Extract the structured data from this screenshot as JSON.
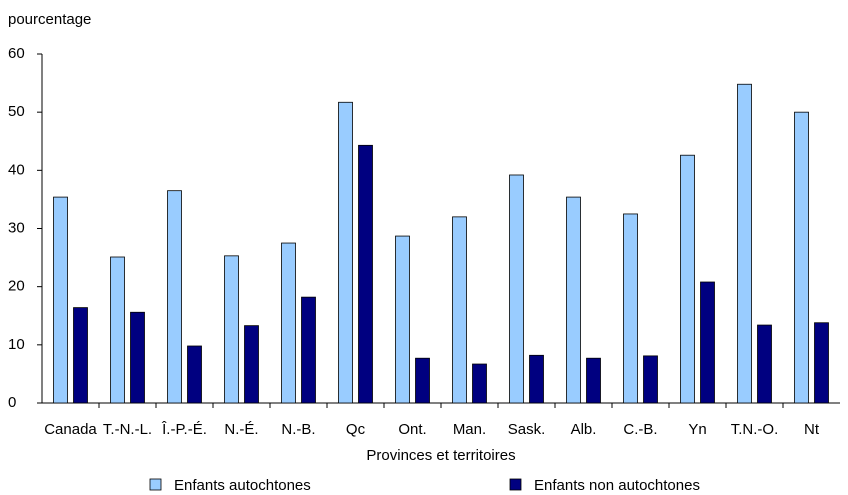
{
  "chart_data": {
    "type": "bar",
    "y_label": "pourcentage",
    "x_label": "Provinces et territoires",
    "categories": [
      "Canada",
      "T.-N.-L.",
      "Î.-P.-É.",
      "N.-É.",
      "N.-B.",
      "Qc",
      "Ont.",
      "Man.",
      "Sask.",
      "Alb.",
      "C.-B.",
      "Yn",
      "T.N.-O.",
      "Nt"
    ],
    "series": [
      {
        "name": "Enfants autochtones",
        "color": "#99ccff",
        "values": [
          35.4,
          25.1,
          36.5,
          25.3,
          27.5,
          51.7,
          28.7,
          32.0,
          39.2,
          35.4,
          32.5,
          42.6,
          54.8,
          50.0
        ]
      },
      {
        "name": "Enfants non autochtones",
        "color": "#000080",
        "values": [
          16.4,
          15.6,
          9.8,
          13.3,
          18.2,
          44.3,
          7.7,
          6.7,
          8.2,
          7.7,
          8.1,
          20.8,
          13.4,
          13.8
        ]
      }
    ],
    "ylim": [
      0,
      60
    ],
    "yticks": [
      0,
      10,
      20,
      30,
      40,
      50,
      60
    ]
  }
}
